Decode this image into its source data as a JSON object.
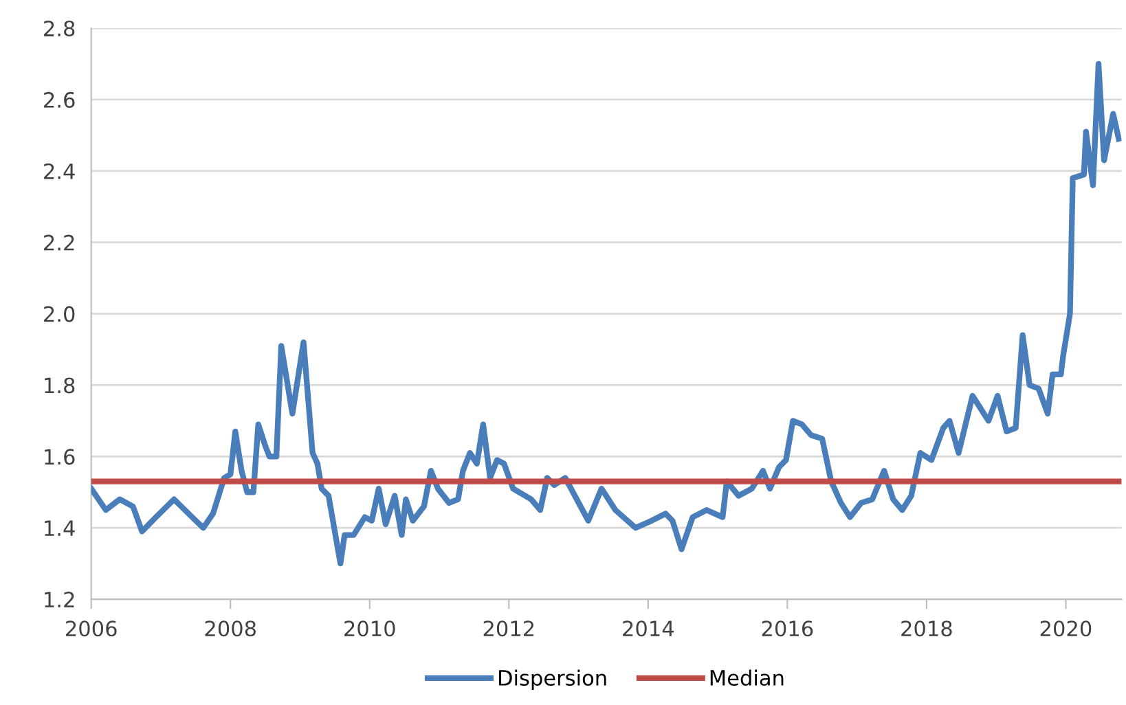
{
  "chart_data": {
    "type": "line",
    "xlim": [
      2006,
      2020.8
    ],
    "xticks": [
      2006,
      2008,
      2010,
      2012,
      2014,
      2016,
      2018,
      2020
    ],
    "ylim": [
      1.2,
      2.8
    ],
    "yticks": [
      1.2,
      1.4,
      1.6,
      1.8,
      {
        "value": 2,
        "label": "2.0"
      },
      2.2,
      2.4,
      2.6,
      2.8
    ],
    "grid": "y",
    "legend": "bottom",
    "line_style": "solid",
    "series": [
      {
        "name": "Dispersion",
        "color": "#4a7ebb",
        "x": [
          2006.0,
          2006.21,
          2006.41,
          2006.6,
          2006.73,
          2006.93,
          2007.19,
          2007.45,
          2007.61,
          2007.75,
          2007.91,
          2008.0,
          2008.07,
          2008.16,
          2008.24,
          2008.33,
          2008.4,
          2008.5,
          2008.56,
          2008.66,
          2008.73,
          2008.89,
          2009.05,
          2009.18,
          2009.25,
          2009.31,
          2009.41,
          2009.58,
          2009.64,
          2009.77,
          2009.93,
          2010.03,
          2010.13,
          2010.23,
          2010.36,
          2010.46,
          2010.52,
          2010.62,
          2010.78,
          2010.88,
          2010.98,
          2011.14,
          2011.27,
          2011.34,
          2011.44,
          2011.54,
          2011.63,
          2011.73,
          2011.83,
          2011.93,
          2012.06,
          2012.32,
          2012.45,
          2012.55,
          2012.65,
          2012.81,
          2013.14,
          2013.33,
          2013.53,
          2013.82,
          2014.05,
          2014.25,
          2014.35,
          2014.48,
          2014.64,
          2014.84,
          2015.07,
          2015.13,
          2015.3,
          2015.49,
          2015.65,
          2015.75,
          2015.88,
          2015.98,
          2016.08,
          2016.21,
          2016.34,
          2016.5,
          2016.63,
          2016.77,
          2016.9,
          2017.06,
          2017.22,
          2017.39,
          2017.52,
          2017.65,
          2017.78,
          2017.91,
          2018.07,
          2018.24,
          2018.33,
          2018.46,
          2018.66,
          2018.89,
          2019.02,
          2019.15,
          2019.28,
          2019.38,
          2019.48,
          2019.61,
          2019.74,
          2019.81,
          2019.93,
          2019.96,
          2020.06,
          2020.1,
          2020.26,
          2020.29,
          2020.39,
          2020.47,
          2020.55,
          2020.68,
          2020.76
        ],
        "values": [
          1.51,
          1.45,
          1.48,
          1.46,
          1.39,
          1.43,
          1.48,
          1.43,
          1.4,
          1.44,
          1.54,
          1.55,
          1.67,
          1.56,
          1.5,
          1.5,
          1.69,
          1.63,
          1.6,
          1.6,
          1.91,
          1.72,
          1.92,
          1.61,
          1.58,
          1.51,
          1.49,
          1.3,
          1.38,
          1.38,
          1.43,
          1.42,
          1.51,
          1.41,
          1.49,
          1.38,
          1.48,
          1.42,
          1.46,
          1.56,
          1.51,
          1.47,
          1.48,
          1.56,
          1.61,
          1.58,
          1.69,
          1.54,
          1.59,
          1.58,
          1.51,
          1.48,
          1.45,
          1.54,
          1.52,
          1.54,
          1.42,
          1.51,
          1.45,
          1.4,
          1.42,
          1.44,
          1.42,
          1.34,
          1.43,
          1.45,
          1.43,
          1.53,
          1.49,
          1.51,
          1.56,
          1.51,
          1.57,
          1.59,
          1.7,
          1.69,
          1.66,
          1.65,
          1.53,
          1.47,
          1.43,
          1.47,
          1.48,
          1.56,
          1.48,
          1.45,
          1.49,
          1.61,
          1.59,
          1.68,
          1.7,
          1.61,
          1.77,
          1.7,
          1.77,
          1.67,
          1.68,
          1.94,
          1.8,
          1.79,
          1.72,
          1.83,
          1.83,
          1.88,
          2.0,
          2.38,
          2.39,
          2.51,
          2.36,
          2.7,
          2.43,
          2.56,
          2.49
        ]
      },
      {
        "name": "Median",
        "color": "#be4b48",
        "x": [
          2006,
          2020.8
        ],
        "values": [
          1.53,
          1.53
        ]
      }
    ]
  }
}
